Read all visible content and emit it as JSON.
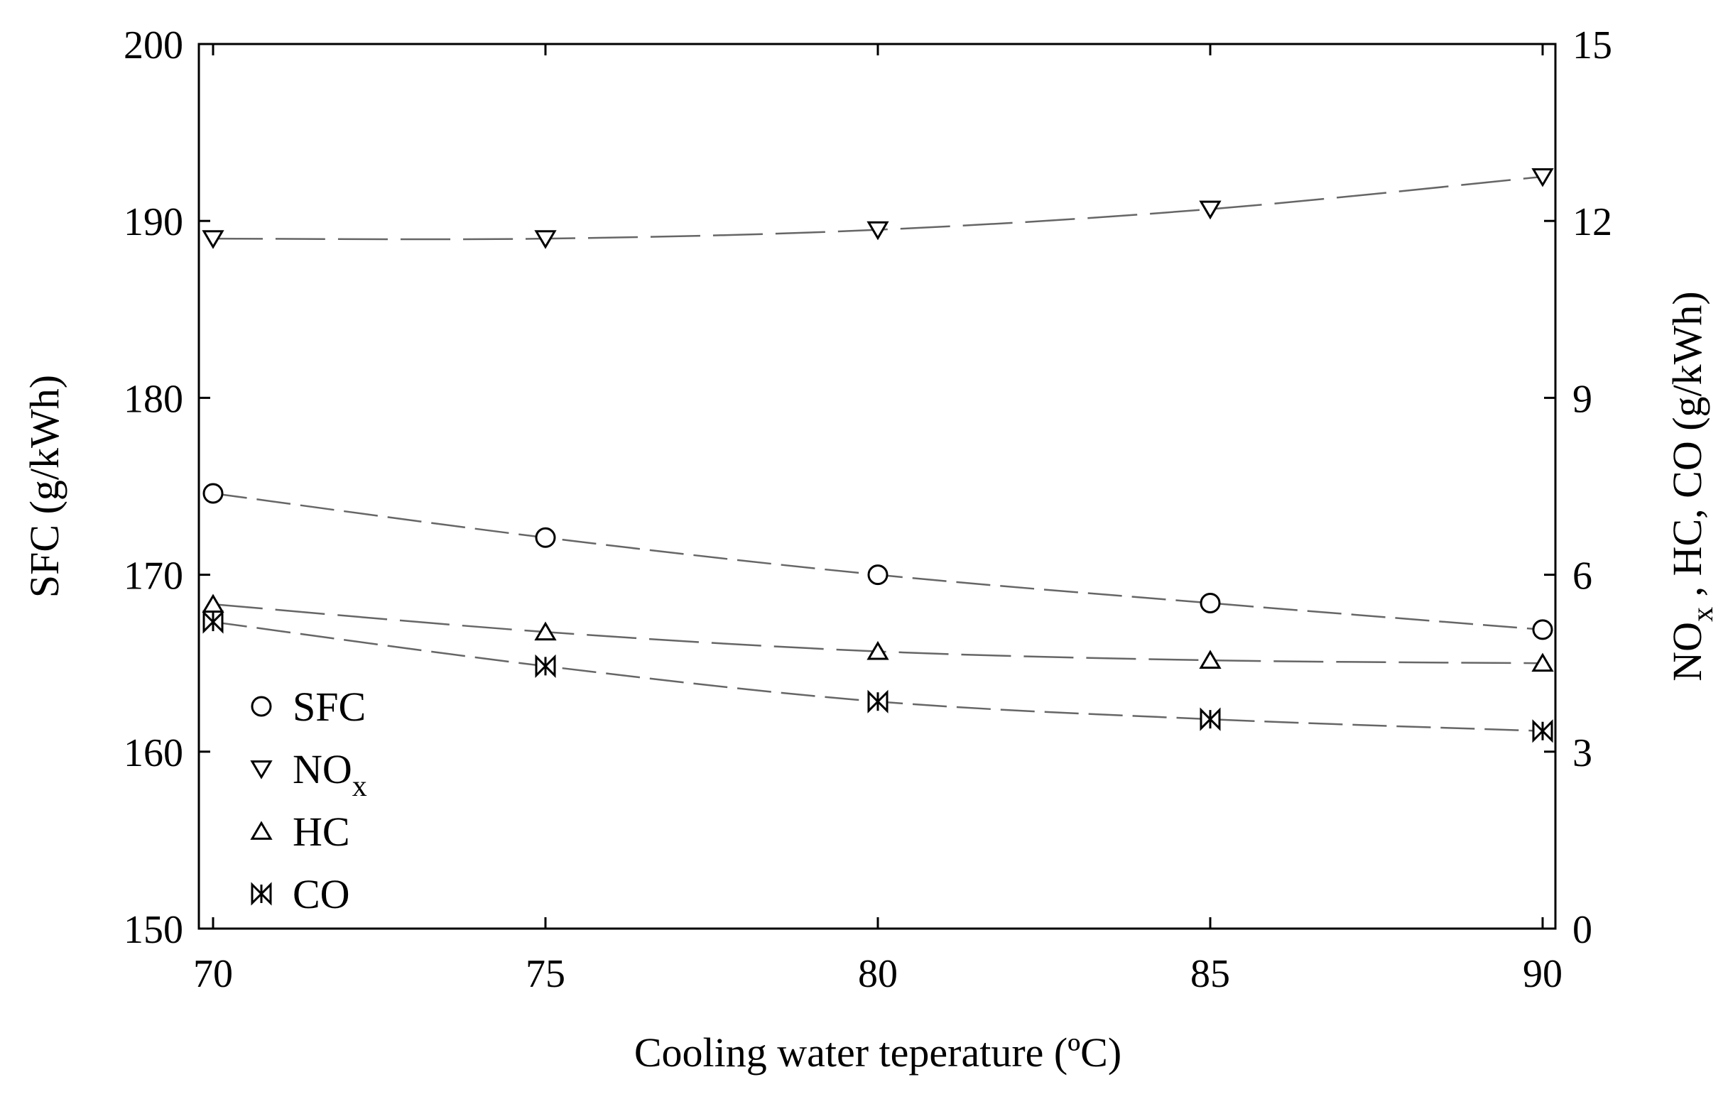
{
  "chart_data": {
    "type": "line",
    "xlabel": "Cooling water teperature (ºC)",
    "ylabel_left": "SFC (g/kWh)",
    "ylabel_right_parts": [
      "NO",
      "x",
      " , HC, CO (g/kWh)"
    ],
    "x": [
      70,
      75,
      80,
      85,
      90
    ],
    "xlim": [
      70,
      90
    ],
    "x_ticks": [
      "70",
      "75",
      "80",
      "85",
      "90"
    ],
    "ylim_left": [
      150,
      200
    ],
    "y_ticks_left": [
      "150",
      "160",
      "170",
      "180",
      "190",
      "200"
    ],
    "ylim_right": [
      0,
      15
    ],
    "y_ticks_right": [
      "0",
      "3",
      "6",
      "9",
      "12",
      "15"
    ],
    "grid": false,
    "legend_position": "lower-left",
    "series": [
      {
        "name": "SFC",
        "name_sub": "",
        "axis": "left",
        "marker": "circle",
        "values": [
          174.6,
          172.1,
          170.0,
          168.4,
          166.9
        ]
      },
      {
        "name": "NO",
        "name_sub": "x",
        "axis": "right",
        "marker": "triangle-down",
        "values": [
          11.7,
          11.7,
          11.85,
          12.2,
          12.75
        ]
      },
      {
        "name": "HC",
        "name_sub": "",
        "axis": "right",
        "marker": "triangle-up",
        "values": [
          5.5,
          5.03,
          4.7,
          4.55,
          4.5
        ]
      },
      {
        "name": "CO",
        "name_sub": "",
        "axis": "right",
        "marker": "bowtie",
        "values": [
          5.2,
          4.45,
          3.85,
          3.55,
          3.35
        ]
      }
    ],
    "line_color": "#666666",
    "marker_color": "#000000"
  }
}
